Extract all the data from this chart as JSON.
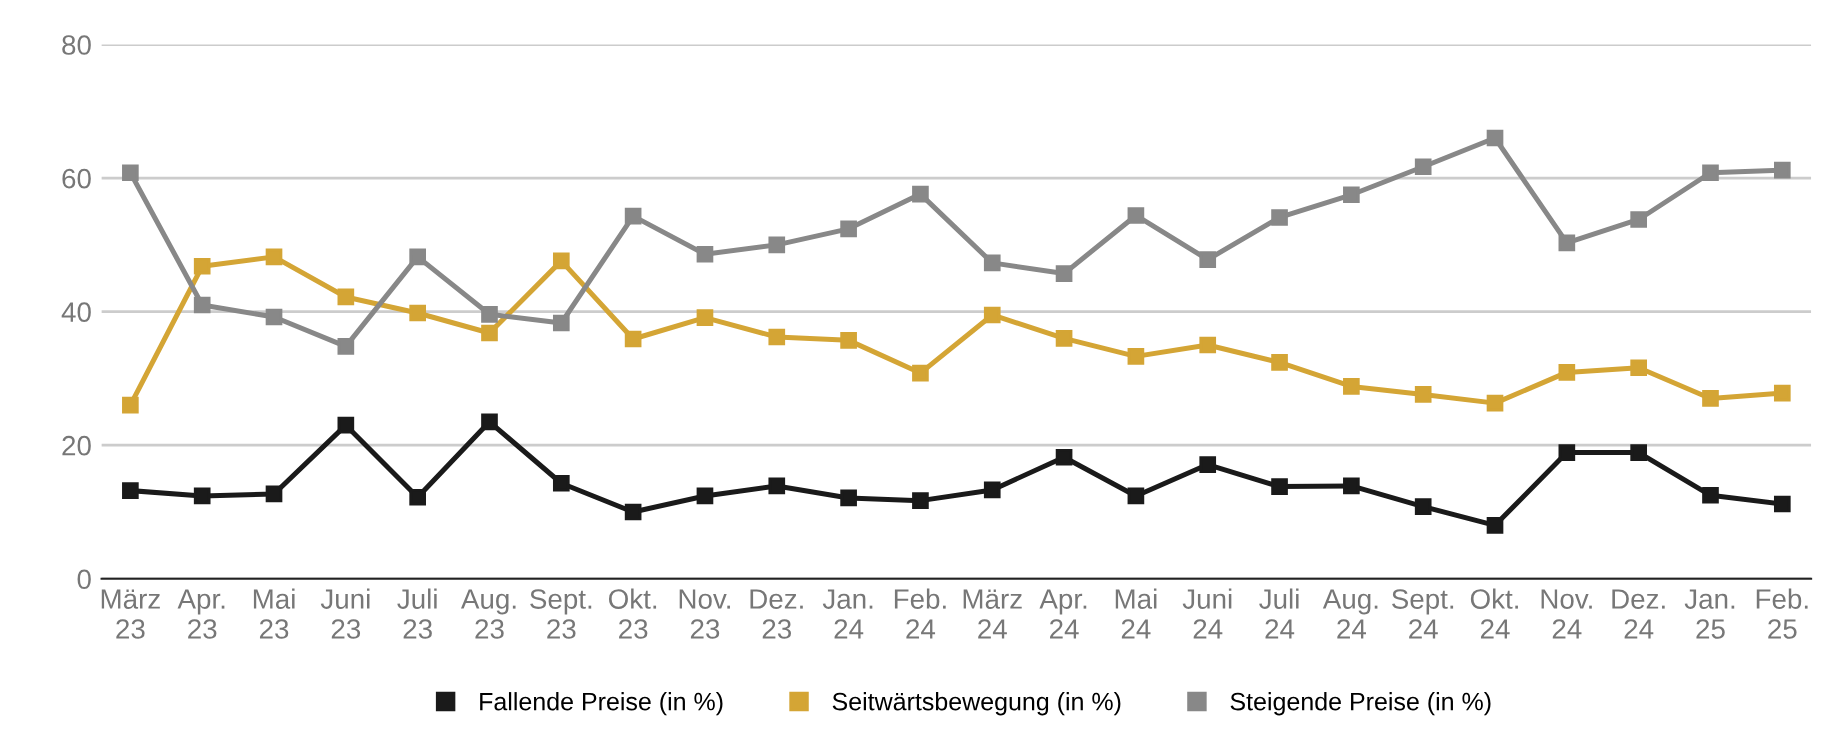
{
  "chart_data": {
    "type": "line",
    "categories": [
      "März\n23",
      "Apr.\n23",
      "Mai\n23",
      "Juni\n23",
      "Juli\n23",
      "Aug.\n23",
      "Sept.\n23",
      "Okt.\n23",
      "Nov.\n23",
      "Dez.\n23",
      "Jan.\n24",
      "Feb.\n24",
      "März\n24",
      "Apr.\n24",
      "Mai\n24",
      "Juni\n24",
      "Juli\n24",
      "Aug.\n24",
      "Sept.\n24",
      "Okt.\n24",
      "Nov.\n24",
      "Dez.\n24",
      "Jan.\n25",
      "Feb.\n25"
    ],
    "series": [
      {
        "name": "Fallende Preise (in %)",
        "color": "#1a1a1a",
        "values": [
          13.2,
          12.4,
          12.7,
          23,
          12.2,
          23.5,
          14.3,
          10,
          12.4,
          13.9,
          12.1,
          11.7,
          13.3,
          18.2,
          12.4,
          17.1,
          13.8,
          13.9,
          10.8,
          8,
          18.9,
          18.9,
          12.5,
          11.2
        ]
      },
      {
        "name": "Seitwärtsbewegung (in %)",
        "color": "#d4a535",
        "values": [
          26,
          46.8,
          48.2,
          42.2,
          39.8,
          36.8,
          47.6,
          35.9,
          39.1,
          36.2,
          35.7,
          30.8,
          39.5,
          36,
          33.3,
          35,
          32.4,
          28.8,
          27.6,
          26.3,
          30.9,
          31.6,
          27,
          27.8
        ]
      },
      {
        "name": "Steigende Preise (in %)",
        "color": "#888888",
        "values": [
          60.8,
          41,
          39.2,
          34.8,
          48.2,
          39.6,
          38.3,
          54.3,
          48.6,
          50,
          52.4,
          57.6,
          47.3,
          45.7,
          54.4,
          47.8,
          54.1,
          57.5,
          61.7,
          66,
          50.3,
          53.8,
          60.8,
          61.2
        ]
      }
    ],
    "ylim": [
      0,
      80
    ],
    "yticks": [
      0,
      20,
      40,
      60,
      80
    ],
    "grid": "y",
    "legend": "bottom",
    "marker": "square",
    "line_style": "solid"
  }
}
